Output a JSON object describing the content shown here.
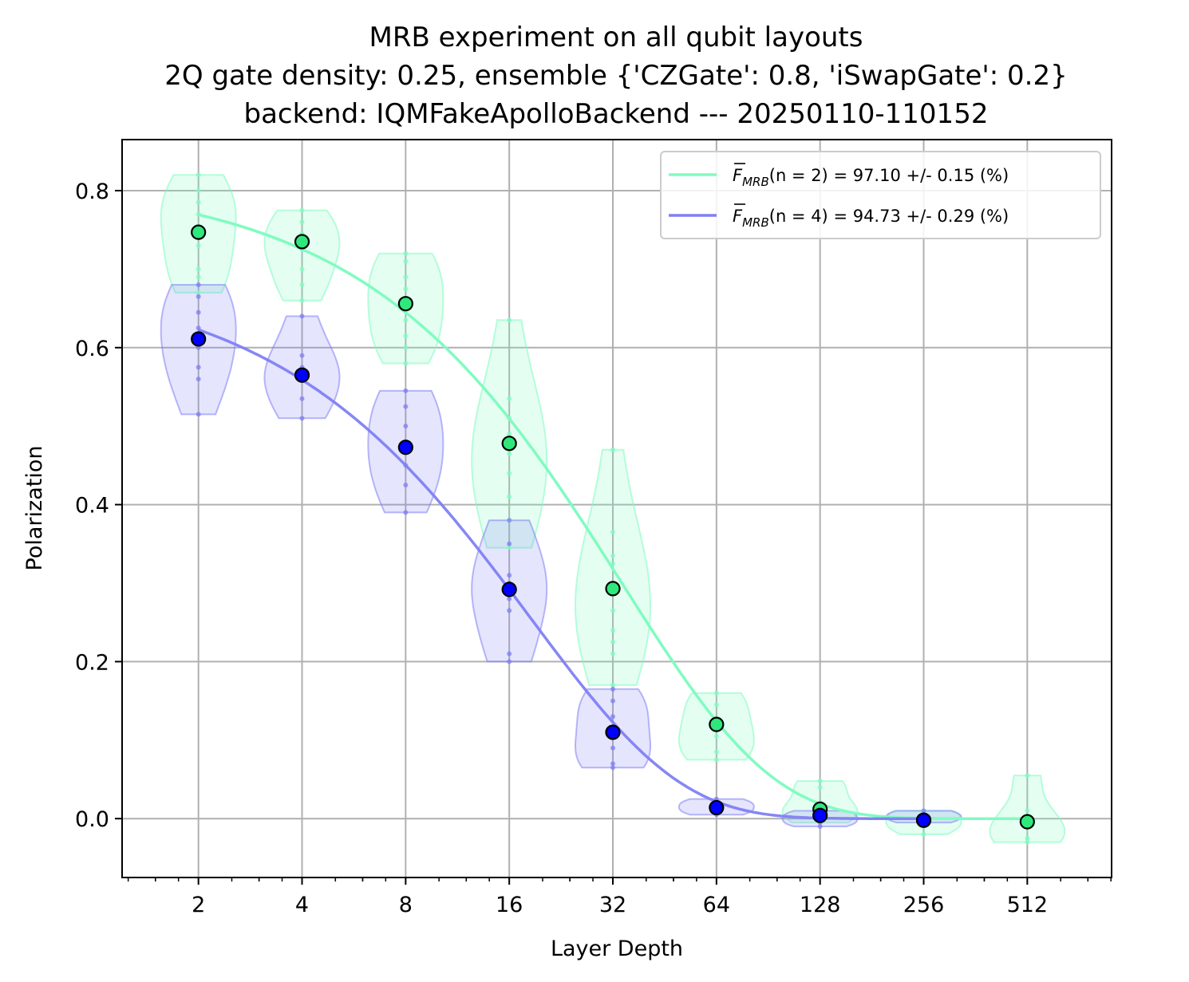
{
  "chart_data": {
    "type": "scatter",
    "title": [
      "MRB experiment on all qubit layouts",
      "2Q gate density: 0.25, ensemble {'CZGate': 0.8, 'iSwapGate': 0.2}",
      "backend: IQMFakeApolloBackend --- 20250110-110152"
    ],
    "xlabel": "Layer Depth",
    "ylabel": "Polarization",
    "x_scale": "log2",
    "xlim": [
      1.2,
      900
    ],
    "ylim": [
      -0.075,
      0.865
    ],
    "x_ticks": [
      2,
      4,
      8,
      16,
      32,
      64,
      128,
      256,
      512
    ],
    "x_tick_labels": [
      "2",
      "4",
      "8",
      "16",
      "32",
      "64",
      "128",
      "256",
      "512"
    ],
    "y_ticks": [
      0.0,
      0.2,
      0.4,
      0.6,
      0.8
    ],
    "y_tick_labels": [
      "0.0",
      "0.2",
      "0.4",
      "0.6",
      "0.8"
    ],
    "grid": true,
    "legend_position": "top-right",
    "series": [
      {
        "qubits": 2,
        "color": "#7ffcc0",
        "marker_color": "#2ee87c",
        "legend": {
          "symbol": "F",
          "subscript": "MRB",
          "argument": "(n = 2)",
          "value": " = 97.10 +/- 0.15 (%)"
        },
        "fidelity": 0.971,
        "fit_amplitude": 0.816,
        "depths": [
          2,
          4,
          8,
          16,
          32,
          64,
          128,
          256,
          512
        ],
        "means": [
          0.747,
          0.735,
          0.656,
          0.478,
          0.293,
          0.12,
          0.012,
          -0.002,
          -0.004
        ],
        "samples": [
          [
            0.82,
            0.8,
            0.785,
            0.77,
            0.755,
            0.73,
            0.7,
            0.69,
            0.67
          ],
          [
            0.775,
            0.76,
            0.745,
            0.73,
            0.725,
            0.7,
            0.68,
            0.66
          ],
          [
            0.72,
            0.71,
            0.69,
            0.675,
            0.655,
            0.635,
            0.615,
            0.6,
            0.58
          ],
          [
            0.635,
            0.535,
            0.51,
            0.49,
            0.465,
            0.44,
            0.41,
            0.38,
            0.345
          ],
          [
            0.47,
            0.365,
            0.335,
            0.325,
            0.295,
            0.265,
            0.24,
            0.225,
            0.21,
            0.17
          ],
          [
            0.16,
            0.145,
            0.12,
            0.105,
            0.085,
            0.075
          ],
          [
            0.048,
            0.04,
            0.02,
            0.01,
            0.005,
            -0.005
          ],
          [
            0.01,
            0.005,
            -0.005,
            -0.01,
            -0.02
          ],
          [
            0.055,
            0.01,
            -0.01,
            -0.025,
            -0.03
          ]
        ]
      },
      {
        "qubits": 4,
        "color": "#7f7ff5",
        "marker_color": "#0000ff",
        "legend": {
          "symbol": "F",
          "subscript": "MRB",
          "argument": "(n = 4)",
          "value": " = 94.73 +/- 0.29 (%)"
        },
        "fidelity": 0.9473,
        "fit_amplitude": 0.694,
        "depths": [
          2,
          4,
          8,
          16,
          32,
          64,
          128,
          256
        ],
        "means": [
          0.611,
          0.565,
          0.473,
          0.292,
          0.11,
          0.014,
          0.004,
          -0.002
        ],
        "samples": [
          [
            0.68,
            0.665,
            0.645,
            0.625,
            0.6,
            0.575,
            0.56,
            0.515
          ],
          [
            0.64,
            0.59,
            0.575,
            0.56,
            0.535,
            0.51
          ],
          [
            0.545,
            0.525,
            0.5,
            0.47,
            0.45,
            0.425,
            0.39
          ],
          [
            0.38,
            0.35,
            0.31,
            0.3,
            0.28,
            0.265,
            0.21,
            0.2
          ],
          [
            0.165,
            0.15,
            0.13,
            0.11,
            0.09,
            0.07,
            0.065
          ],
          [
            0.025,
            0.02,
            0.015,
            0.01,
            0.005
          ],
          [
            0.01,
            0.005,
            0.0,
            -0.005,
            -0.01
          ],
          [
            0.01,
            0.005,
            0.0,
            -0.005
          ]
        ]
      }
    ]
  }
}
